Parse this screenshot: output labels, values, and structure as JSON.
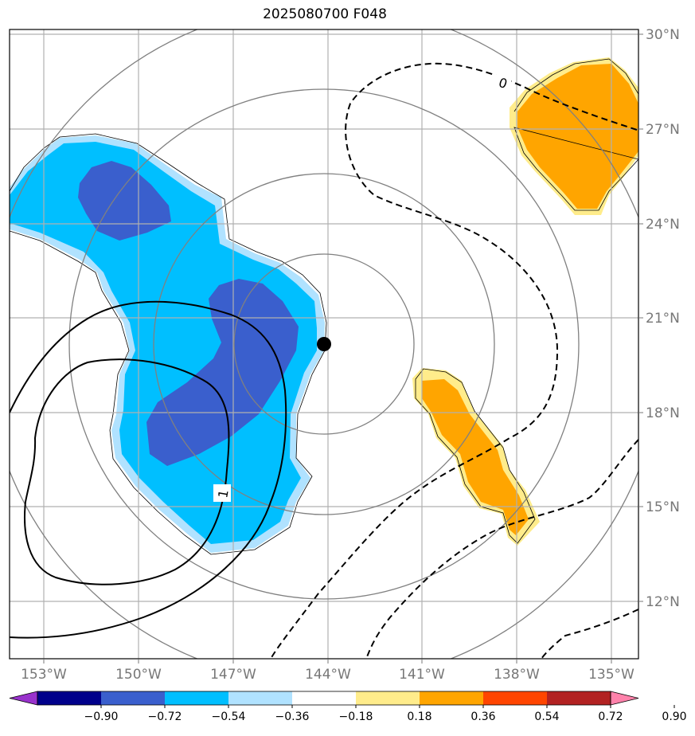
{
  "title": "2025080700 F048",
  "map": {
    "lon_ticks": [
      "153°W",
      "150°W",
      "147°W",
      "144°W",
      "141°W",
      "138°W",
      "135°W"
    ],
    "lat_ticks": [
      "30°N",
      "27°N",
      "24°N",
      "21°N",
      "18°N",
      "15°N",
      "12°N"
    ],
    "center_marker": "storm-center"
  },
  "contour_labels": [
    "0",
    "1"
  ],
  "colorbar": {
    "labels": [
      "−0.90",
      "−0.72",
      "−0.54",
      "−0.36",
      "−0.18",
      "0.18",
      "0.36",
      "0.54",
      "0.72",
      "0.90"
    ],
    "colors": [
      "#9932cc",
      "#00008b",
      "#3a5fcd",
      "#00bfff",
      "#b0e2ff",
      "#ffffff",
      "#ffec8b",
      "#ffa500",
      "#ff4500",
      "#b22222",
      "#ff82ab"
    ]
  },
  "colors": {
    "grid": "#b0b0b0",
    "rings": "#808080",
    "shade_light_blue": "#b0e2ff",
    "shade_blue": "#00bfff",
    "shade_dark_blue": "#3a5fcd",
    "shade_yellow": "#ffec8b",
    "shade_orange": "#ffa500"
  }
}
